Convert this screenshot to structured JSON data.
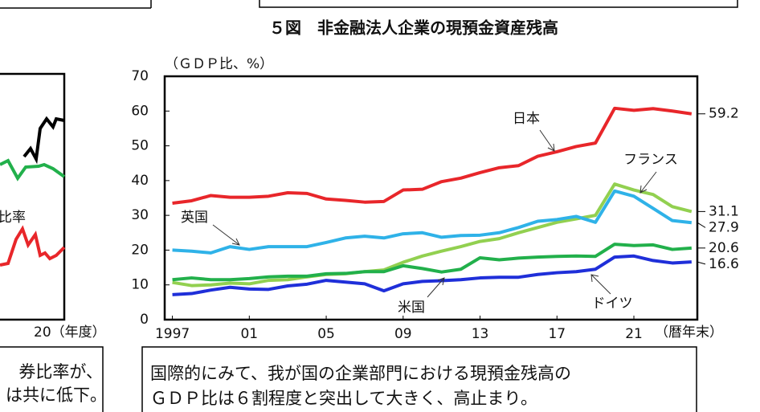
{
  "chart_data": {
    "type": "line",
    "title": "５図　非金融法人企業の現預金資産残高",
    "y_label": "（ＧＤＰ比、%）",
    "x_label": "（暦年末）",
    "x": [
      1997,
      1998,
      1999,
      2000,
      2001,
      2002,
      2003,
      2004,
      2005,
      2006,
      2007,
      2008,
      2009,
      2010,
      2011,
      2012,
      2013,
      2014,
      2015,
      2016,
      2017,
      2018,
      2019,
      2020,
      2021,
      2022,
      2023,
      2024
    ],
    "xlim": [
      1996.6,
      2024.3
    ],
    "xticks": [
      1997,
      {
        "value": 2001,
        "label": "01"
      },
      {
        "value": 2005,
        "label": "05"
      },
      {
        "value": 2009,
        "label": "09"
      },
      {
        "value": 2013,
        "label": "13"
      },
      {
        "value": 2017,
        "label": "17"
      },
      {
        "value": 2021,
        "label": "21"
      }
    ],
    "ylim": [
      0,
      70
    ],
    "yticks": [
      0,
      10,
      20,
      30,
      40,
      50,
      60,
      70
    ],
    "series": [
      {
        "name": "日本",
        "color": "#e8262a",
        "values": [
          33.5,
          34.2,
          35.7,
          35.2,
          35.2,
          35.5,
          36.5,
          36.3,
          34.7,
          34.3,
          33.8,
          34,
          37.3,
          37.5,
          39.7,
          40.7,
          42.3,
          43.7,
          44.3,
          47,
          48.3,
          49.8,
          50.8,
          60.8,
          60.2,
          60.7,
          60,
          59.2
        ]
      },
      {
        "name": "フランス",
        "color": "#92d050",
        "values": [
          10.7,
          9.8,
          10,
          10.5,
          10.3,
          11.3,
          11.5,
          12.3,
          13,
          13.2,
          13.8,
          14.3,
          16.5,
          18.3,
          19.7,
          21,
          22.5,
          23.3,
          25,
          26.5,
          28,
          29,
          30,
          39,
          37.3,
          36,
          32.5,
          31.1
        ]
      },
      {
        "name": "英国",
        "color": "#2fb2e8",
        "values": [
          20,
          19.7,
          19.2,
          21,
          20.2,
          21,
          21,
          21,
          22.2,
          23.5,
          24,
          23.5,
          24.7,
          25,
          23.7,
          24.2,
          24.3,
          25,
          26.5,
          28.3,
          28.8,
          29.7,
          28,
          37,
          35.5,
          32,
          28.5,
          27.9
        ]
      },
      {
        "name": "ドイツ",
        "color": "#22b04b",
        "values": [
          11.5,
          12,
          11.5,
          11.5,
          11.8,
          12.3,
          12.5,
          12.5,
          13.2,
          13.3,
          13.8,
          13.8,
          15.5,
          14.7,
          13.7,
          14.5,
          17.8,
          17.2,
          17.7,
          18,
          18.2,
          18.3,
          18.2,
          21.7,
          21.3,
          21.5,
          20.2,
          20.6
        ]
      },
      {
        "name": "米国",
        "color": "#1f2fd9",
        "values": [
          7.2,
          7.5,
          8.5,
          9.3,
          8.8,
          8.7,
          9.7,
          10.2,
          11.3,
          10.8,
          10.3,
          8.3,
          10.3,
          11,
          11.2,
          11.5,
          12,
          12.2,
          12.2,
          13,
          13.5,
          13.8,
          14.5,
          18,
          18.3,
          17,
          16.3,
          16.6
        ]
      }
    ]
  },
  "left_panel": {
    "series_label": "比率",
    "x_label": "20（年度）",
    "note": [
      "券比率が、",
      "は共に低下。"
    ]
  },
  "caption": [
    "国際的にみて、我が国の企業部門における現預金残高の",
    "ＧＤＰ比は６割程度と突出して大きく、高止まり。"
  ]
}
